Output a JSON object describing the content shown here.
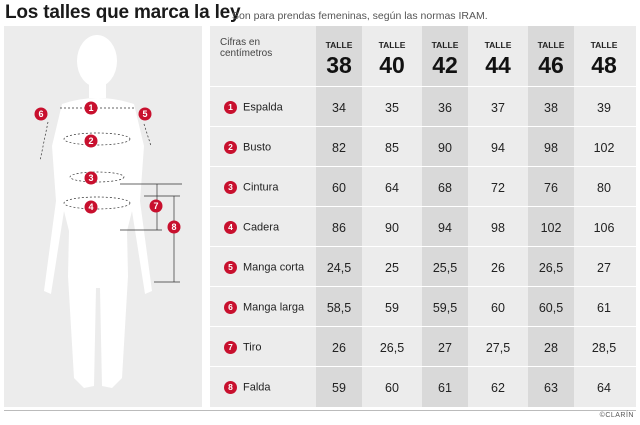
{
  "title": "Los talles que marca la ley",
  "subtitle": "Son para prendas femeninas, según las normas IRAM.",
  "unit_note": "Cifras en centímetros",
  "size_label": "TALLE",
  "sizes": [
    "38",
    "40",
    "42",
    "44",
    "46",
    "48"
  ],
  "measures": [
    {
      "n": "1",
      "label": "Espalda",
      "values": [
        "34",
        "35",
        "36",
        "37",
        "38",
        "39"
      ]
    },
    {
      "n": "2",
      "label": "Busto",
      "values": [
        "82",
        "85",
        "90",
        "94",
        "98",
        "102"
      ]
    },
    {
      "n": "3",
      "label": "Cintura",
      "values": [
        "60",
        "64",
        "68",
        "72",
        "76",
        "80"
      ]
    },
    {
      "n": "4",
      "label": "Cadera",
      "values": [
        "86",
        "90",
        "94",
        "98",
        "102",
        "106"
      ]
    },
    {
      "n": "5",
      "label": "Manga corta",
      "values": [
        "24,5",
        "25",
        "25,5",
        "26",
        "26,5",
        "27"
      ]
    },
    {
      "n": "6",
      "label": "Manga larga",
      "values": [
        "58,5",
        "59",
        "59,5",
        "60",
        "60,5",
        "61"
      ]
    },
    {
      "n": "7",
      "label": "Tiro",
      "values": [
        "26",
        "26,5",
        "27",
        "27,5",
        "28",
        "28,5"
      ]
    },
    {
      "n": "8",
      "label": "Falda",
      "values": [
        "59",
        "60",
        "61",
        "62",
        "63",
        "64"
      ]
    }
  ],
  "figure_markers": [
    "1",
    "2",
    "3",
    "4",
    "5",
    "6",
    "7",
    "8"
  ],
  "credit": "©CLARÍN",
  "colors": {
    "accent": "#c8102e",
    "panel": "#ececec",
    "column": "#d9d9d9"
  }
}
